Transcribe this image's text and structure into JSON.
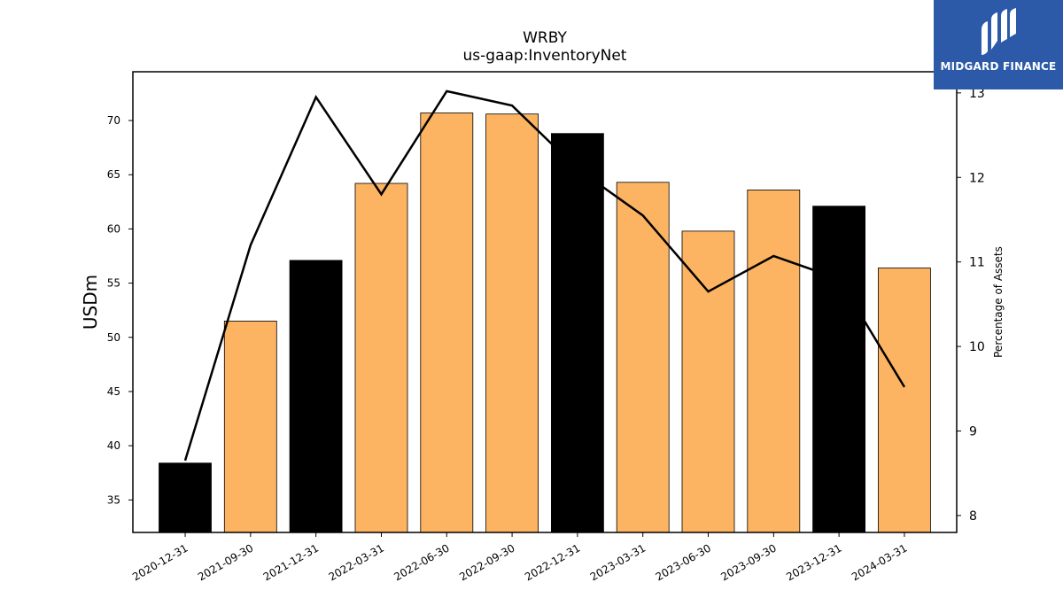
{
  "chart_data": {
    "type": "bar",
    "title": "WRBY",
    "subtitle": "us-gaap:InventoryNet",
    "ylabel": "USDm",
    "y2label": "Percentage of Assets",
    "categories": [
      "2020-12-31",
      "2021-09-30",
      "2021-12-31",
      "2022-03-31",
      "2022-06-30",
      "2022-09-30",
      "2022-12-31",
      "2023-03-31",
      "2023-06-30",
      "2023-09-30",
      "2023-12-31",
      "2024-03-31"
    ],
    "values": [
      38.4,
      51.5,
      57.1,
      64.2,
      70.7,
      70.6,
      68.8,
      64.3,
      59.8,
      63.6,
      62.1,
      56.4
    ],
    "bar_colors": [
      "#000000",
      "#fdb462",
      "#000000",
      "#fdb462",
      "#fdb462",
      "#fdb462",
      "#000000",
      "#fdb462",
      "#fdb462",
      "#fdb462",
      "#000000",
      "#fdb462"
    ],
    "line_values": [
      8.65,
      11.2,
      12.95,
      11.8,
      13.02,
      12.85,
      12.1,
      11.55,
      10.65,
      11.07,
      10.8,
      9.52
    ],
    "line_color": "#000000",
    "ylim": [
      32,
      74.5
    ],
    "y2lim": [
      7.8,
      13.25
    ],
    "yticks": [
      35,
      40,
      45,
      50,
      55,
      60,
      65,
      70
    ],
    "y2ticks": [
      8,
      9,
      10,
      11,
      12,
      13
    ],
    "grid": false
  },
  "logo": {
    "text": "MIDGARD FINANCE",
    "icon": "midgard-logo-icon",
    "color": "#2c5aa8"
  }
}
